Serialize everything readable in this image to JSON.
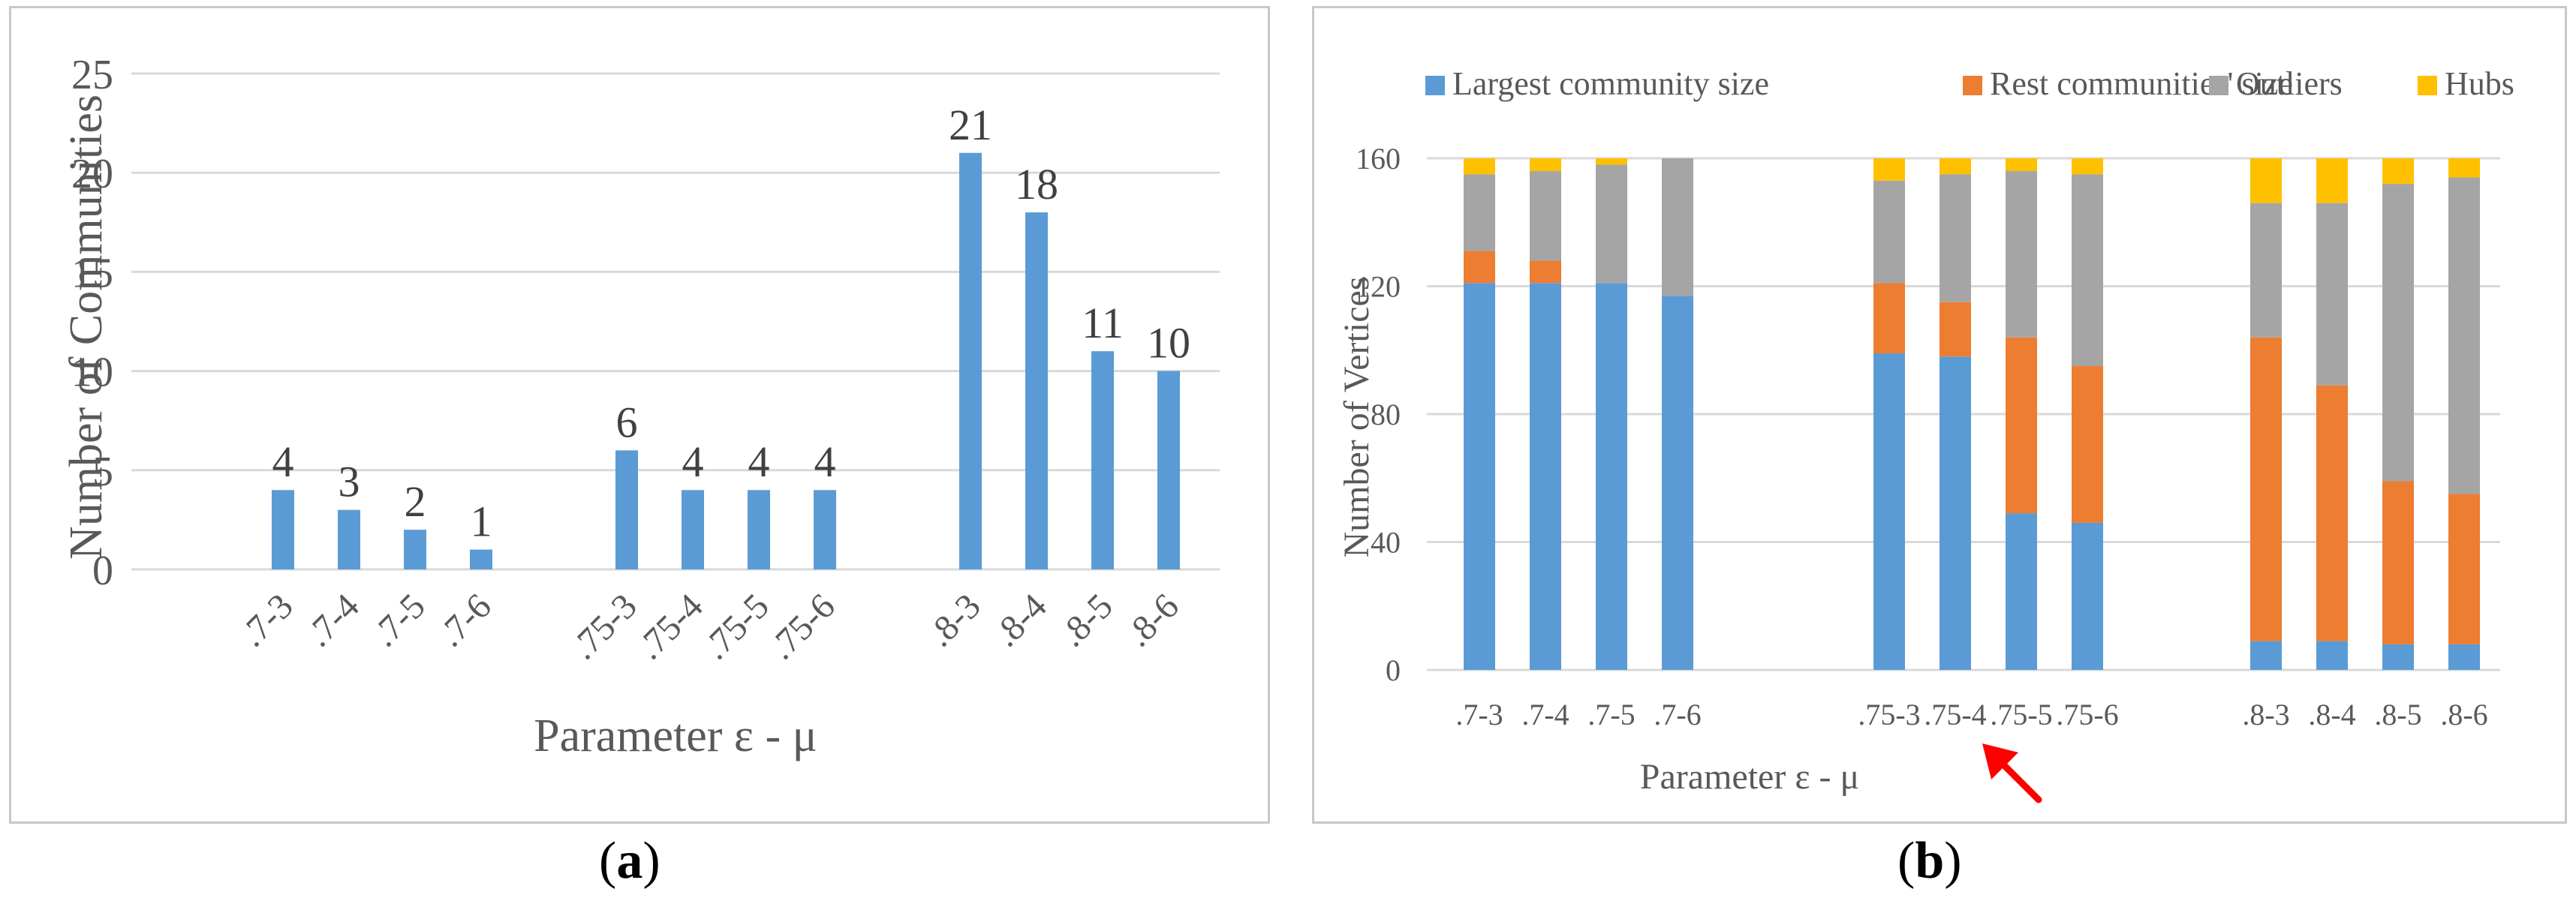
{
  "captions": {
    "a": "a",
    "b": "b"
  },
  "colors": {
    "blue": "#5b9bd5",
    "orange": "#ed7d31",
    "gray": "#a5a5a5",
    "gold": "#ffc000",
    "arrow": "#ff0000"
  },
  "chart_data": [
    {
      "type": "bar",
      "title": "",
      "xlabel": "Parameter ε - μ",
      "ylabel": "Number of Communities",
      "ylim": [
        0,
        25
      ],
      "yticks": [
        0,
        5,
        10,
        15,
        20,
        25
      ],
      "groups": [
        [
          "​.7-3",
          ".7-4",
          ".7-5",
          ".7-6"
        ],
        [
          ".75-3",
          ".75-4",
          ".75-5",
          ".75-6"
        ],
        [
          ".8-3",
          ".8-4",
          ".8-5",
          ".8-6"
        ]
      ],
      "categories": [
        ".7-3",
        ".7-4",
        ".7-5",
        ".7-6",
        ".75-3",
        ".75-4",
        ".75-5",
        ".75-6",
        ".8-3",
        ".8-4",
        ".8-5",
        ".8-6"
      ],
      "values": [
        4,
        3,
        2,
        1,
        6,
        4,
        4,
        4,
        21,
        18,
        11,
        10
      ],
      "data_labels": [
        "4",
        "3",
        "2",
        "1",
        "6",
        "4",
        "4",
        "4",
        "21",
        "18",
        "11",
        "10"
      ]
    },
    {
      "type": "bar",
      "stacked": true,
      "title": "",
      "xlabel": "Parameter ε - μ",
      "ylabel": "Number of Vertices",
      "ylim": [
        0,
        160
      ],
      "yticks": [
        0,
        40,
        80,
        120,
        160
      ],
      "categories": [
        ".7-3",
        ".7-4",
        ".7-5",
        ".7-6",
        ".75-3",
        ".75-4",
        ".75-5",
        ".75-6",
        ".8-3",
        ".8-4",
        ".8-5",
        ".8-6"
      ],
      "legend_position": "top",
      "series": [
        {
          "name": "Largest community size",
          "values": [
            121,
            121,
            121,
            117,
            99,
            98,
            49,
            46,
            9,
            9,
            8,
            8
          ]
        },
        {
          "name": "Rest communities' size",
          "values": [
            10,
            7,
            0,
            0,
            22,
            17,
            55,
            49,
            95,
            80,
            51,
            47
          ]
        },
        {
          "name": "Outliers",
          "values": [
            24,
            28,
            37,
            43,
            32,
            40,
            52,
            60,
            42,
            57,
            93,
            99
          ]
        },
        {
          "name": "Hubs",
          "values": [
            5,
            4,
            2,
            0,
            7,
            5,
            4,
            5,
            14,
            14,
            8,
            6
          ]
        }
      ],
      "annotation": "red arrow pointing to .75-5"
    }
  ]
}
